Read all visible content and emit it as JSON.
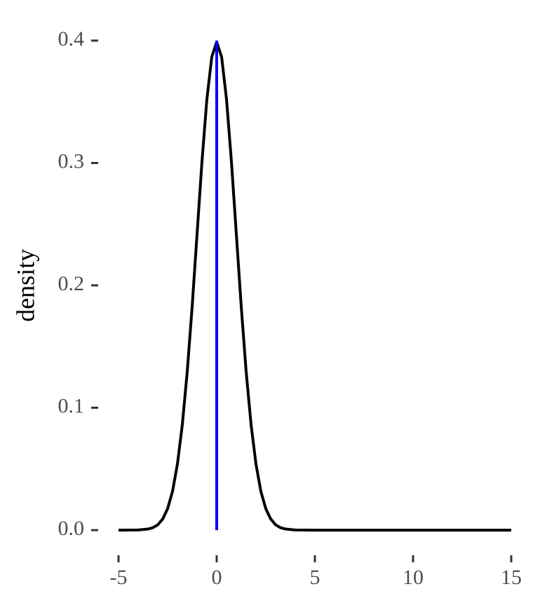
{
  "chart_data": {
    "type": "line",
    "y_label": "density",
    "xlim": [
      -6,
      16
    ],
    "ylim": [
      -0.02,
      0.42
    ],
    "xticks": [
      -5,
      0,
      5,
      10,
      15
    ],
    "yticks": [
      {
        "value": 0,
        "label": "0.0"
      },
      0.1,
      0.2,
      0.3,
      0.4
    ],
    "grid": false,
    "series": [
      {
        "color": "#000000",
        "x": [
          -5,
          -4,
          -3.5,
          -3.25,
          -3,
          -2.75,
          -2.5,
          -2.25,
          -2,
          -1.75,
          -1.5,
          -1.25,
          -1,
          -0.75,
          -0.5,
          -0.25,
          0,
          0.25,
          0.5,
          0.75,
          1,
          1.25,
          1.5,
          1.75,
          2,
          2.25,
          2.5,
          2.75,
          3,
          3.25,
          3.5,
          4,
          5,
          15
        ],
        "values": [
          0,
          0.0001,
          0.0009,
          0.002,
          0.0044,
          0.0091,
          0.0175,
          0.0317,
          0.054,
          0.0863,
          0.1295,
          0.1826,
          0.242,
          0.3011,
          0.3521,
          0.3867,
          0.3989,
          0.3867,
          0.3521,
          0.3011,
          0.242,
          0.1826,
          0.1295,
          0.0863,
          0.054,
          0.0317,
          0.0175,
          0.0091,
          0.0044,
          0.002,
          0.0009,
          0.0001,
          0,
          0
        ]
      },
      {
        "color": "#0000ff",
        "x": [
          0,
          0
        ],
        "values": [
          0,
          0.4
        ]
      }
    ]
  }
}
